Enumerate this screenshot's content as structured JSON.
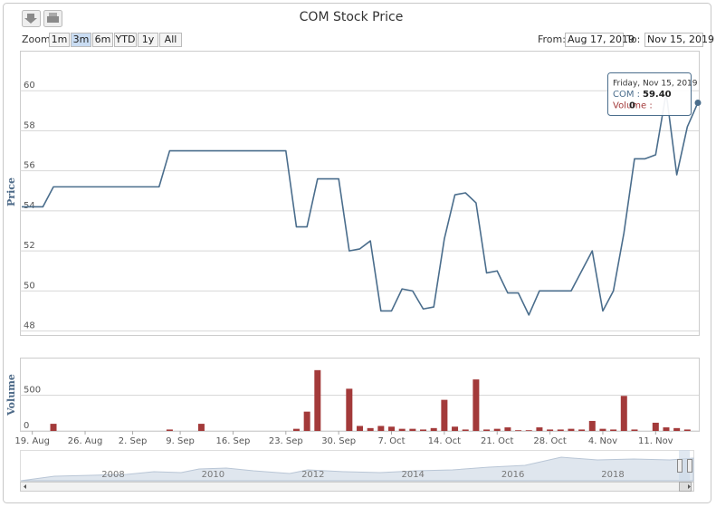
{
  "ui": {
    "zoom_label": "Zoom",
    "buttons": [
      "1m",
      "3m",
      "6m",
      "YTD",
      "1y",
      "All"
    ],
    "selected_button": 1,
    "from_label": "From:",
    "from": "Aug 17, 2019",
    "to_label": "To:",
    "to": "Nov 15, 2019"
  },
  "navigator": {
    "labels": [
      "2008",
      "2010",
      "2012",
      "2014",
      "2016",
      "2018"
    ]
  },
  "chart_data": {
    "type": "line",
    "title": "COM Stock Price",
    "x": [
      "2019-08-16",
      "2019-08-19",
      "2019-08-20",
      "2019-08-21",
      "2019-08-22",
      "2019-08-23",
      "2019-08-26",
      "2019-08-27",
      "2019-08-28",
      "2019-08-29",
      "2019-08-30",
      "2019-09-03",
      "2019-09-04",
      "2019-09-05",
      "2019-09-06",
      "2019-09-09",
      "2019-09-10",
      "2019-09-11",
      "2019-09-12",
      "2019-09-13",
      "2019-09-16",
      "2019-09-17",
      "2019-09-18",
      "2019-09-19",
      "2019-09-20",
      "2019-09-23",
      "2019-09-24",
      "2019-09-25",
      "2019-09-26",
      "2019-09-27",
      "2019-09-30",
      "2019-10-01",
      "2019-10-02",
      "2019-10-03",
      "2019-10-04",
      "2019-10-07",
      "2019-10-08",
      "2019-10-09",
      "2019-10-10",
      "2019-10-11",
      "2019-10-14",
      "2019-10-15",
      "2019-10-16",
      "2019-10-17",
      "2019-10-18",
      "2019-10-21",
      "2019-10-22",
      "2019-10-23",
      "2019-10-24",
      "2019-10-25",
      "2019-10-28",
      "2019-10-29",
      "2019-10-30",
      "2019-10-31",
      "2019-11-01",
      "2019-11-04",
      "2019-11-05",
      "2019-11-06",
      "2019-11-07",
      "2019-11-08",
      "2019-11-11",
      "2019-11-12",
      "2019-11-13",
      "2019-11-14",
      "2019-11-15"
    ],
    "series": [
      {
        "type": "line",
        "color": "#4a6d8c",
        "values": [
          54.2,
          54.2,
          54.2,
          55.2,
          55.2,
          55.2,
          55.2,
          55.2,
          55.2,
          55.2,
          55.2,
          55.2,
          55.2,
          55.2,
          57,
          57,
          57,
          57,
          57,
          57,
          57,
          57,
          57,
          57,
          57,
          57,
          53.2,
          53.2,
          55.6,
          55.6,
          55.6,
          52.0,
          52.1,
          52.5,
          49.0,
          49.0,
          50.1,
          50.0,
          49.1,
          49.2,
          52.6,
          54.8,
          54.9,
          54.4,
          50.9,
          51.0,
          49.9,
          49.9,
          48.8,
          50.0,
          50.0,
          50.0,
          50.0,
          51.0,
          52.0,
          49.0,
          50.0,
          52.9,
          56.6,
          56.6,
          56.8,
          59.9,
          55.8,
          58.2,
          59.4
        ]
      },
      {
        "type": "bar",
        "axis": "y2",
        "color": "#a33a3a",
        "values": [
          0,
          0,
          0,
          100,
          0,
          0,
          0,
          0,
          0,
          0,
          0,
          0,
          0,
          0,
          20,
          0,
          0,
          100,
          0,
          0,
          0,
          0,
          0,
          0,
          0,
          0,
          30,
          270,
          850,
          0,
          0,
          590,
          70,
          40,
          70,
          60,
          30,
          30,
          20,
          40,
          435,
          60,
          20,
          720,
          20,
          30,
          50,
          10,
          10,
          50,
          20,
          20,
          30,
          20,
          140,
          30,
          20,
          490,
          20,
          0,
          115,
          50,
          40,
          20,
          0
        ]
      }
    ],
    "y_title": "Price",
    "ylim": [
      47.8,
      62.0
    ],
    "yticks": [
      48,
      50,
      52,
      54,
      56,
      58,
      60
    ],
    "y2_title": "Volume",
    "y2lim": [
      0,
      1025
    ],
    "y2ticks": [
      0,
      500
    ],
    "xticks": [
      {
        "value": "2019-08-19",
        "label": "19. Aug"
      },
      {
        "value": "2019-08-26",
        "label": "26. Aug"
      },
      {
        "value": "2019-09-02",
        "label": "2. Sep"
      },
      {
        "value": "2019-09-09",
        "label": "9. Sep"
      },
      {
        "value": "2019-09-16",
        "label": "16. Sep"
      },
      {
        "value": "2019-09-23",
        "label": "23. Sep"
      },
      {
        "value": "2019-09-30",
        "label": "30. Sep"
      },
      {
        "value": "2019-10-07",
        "label": "7. Oct"
      },
      {
        "value": "2019-10-14",
        "label": "14. Oct"
      },
      {
        "value": "2019-10-21",
        "label": "21. Oct"
      },
      {
        "value": "2019-10-28",
        "label": "28. Oct"
      },
      {
        "value": "2019-11-04",
        "label": "4. Nov"
      },
      {
        "value": "2019-11-11",
        "label": "11. Nov"
      }
    ],
    "grid": true,
    "tooltip": {
      "header": "Friday, Nov 15, 2019",
      "rows": [
        {
          "label": "COM :",
          "value": "59.40"
        },
        {
          "label": "Volume :",
          "value": "0"
        }
      ]
    }
  }
}
